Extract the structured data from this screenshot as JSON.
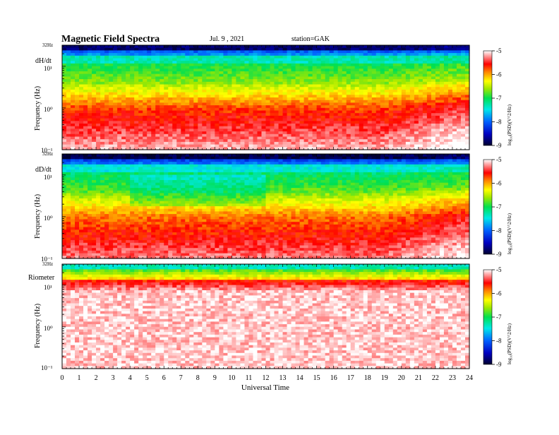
{
  "header": {
    "title": "Magnetic  Field  Spectra",
    "date": "Jul.  9  , 2021",
    "station": "station=GAK"
  },
  "chart_data": {
    "type": "heatmap",
    "xlabel": "Universal Time",
    "x_ticks": [
      "0",
      "1",
      "2",
      "3",
      "4",
      "5",
      "6",
      "7",
      "8",
      "9",
      "10",
      "11",
      "12",
      "13",
      "14",
      "15",
      "16",
      "17",
      "18",
      "19",
      "20",
      "21",
      "22",
      "23",
      "24"
    ],
    "xlim": [
      0,
      24
    ],
    "colors": {
      "scale": [
        "#000040",
        "#0000c0",
        "#0060ff",
        "#00e0e0",
        "#00e060",
        "#80e000",
        "#ffff00",
        "#ff8000",
        "#ff0000",
        "#ff8080",
        "#ffffff"
      ]
    },
    "panels": [
      {
        "label": "dH/dt",
        "ylabel": "Frequency (Hz)",
        "top_tick": "32Hz",
        "y_ticks": [
          "10¹",
          "10⁰",
          "10⁻¹"
        ],
        "ylim": [
          0.1,
          32
        ],
        "colorbar_label": "log₁₀(PSD)(V^2/Hz)",
        "colorbar_ticks": [
          "-5",
          "-6",
          "-7",
          "-8",
          "-9"
        ],
        "colorbar_range": [
          -9,
          -5
        ]
      },
      {
        "label": "dD/dt",
        "ylabel": "Frequency (Hz)",
        "top_tick": "32Hz",
        "y_ticks": [
          "10¹",
          "10⁰",
          "10⁻¹"
        ],
        "ylim": [
          0.1,
          32
        ],
        "colorbar_label": "log₁₀(PSD)(V^2/Hz)",
        "colorbar_ticks": [
          "-5",
          "-6",
          "-7",
          "-8",
          "-9"
        ],
        "colorbar_range": [
          -9,
          -5
        ]
      },
      {
        "label": "Riometer",
        "ylabel": "Frequency (Hz)",
        "top_tick": "32Hz",
        "y_ticks": [
          "10¹",
          "10⁰",
          "10⁻¹"
        ],
        "ylim": [
          0.1,
          32
        ],
        "colorbar_label": "log₁₀(PSD)(V^2/Hz)",
        "colorbar_ticks": [
          "-5",
          "-6",
          "-7",
          "-8",
          "-9"
        ],
        "colorbar_range": [
          -9,
          -5
        ]
      }
    ]
  }
}
